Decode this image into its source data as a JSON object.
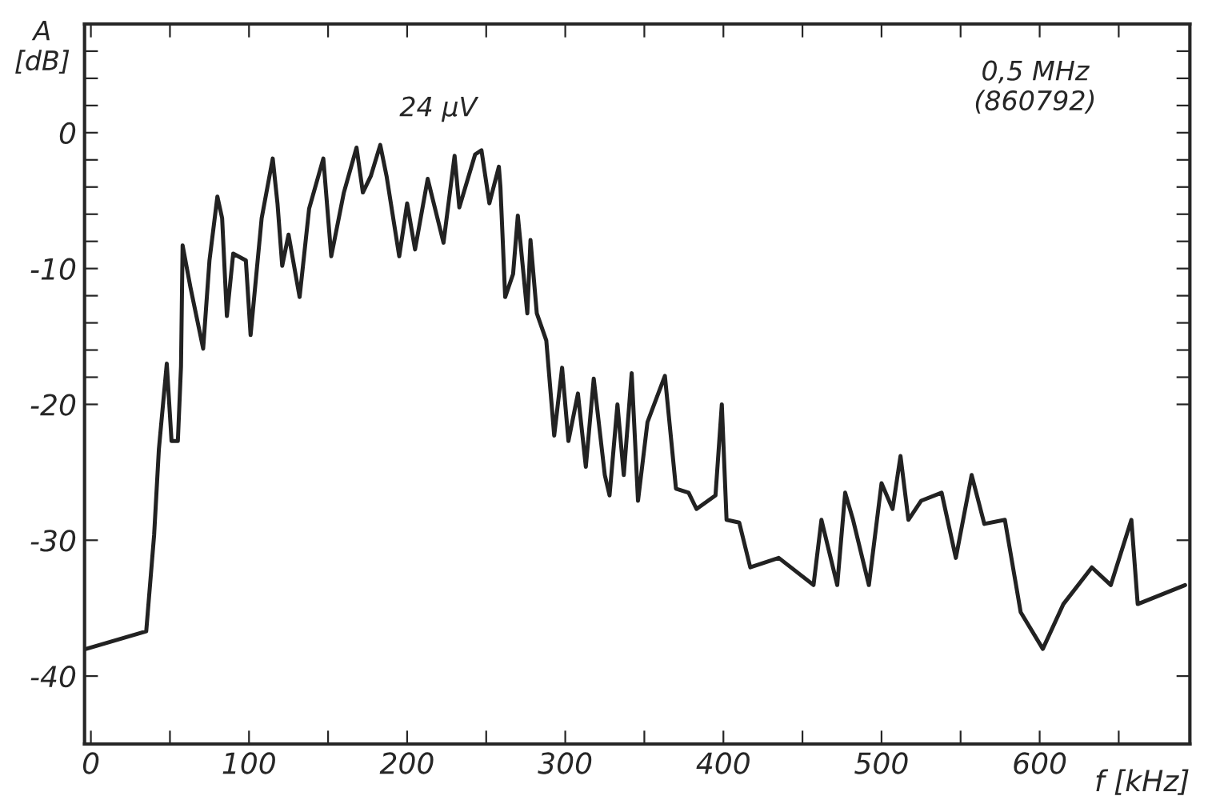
{
  "chart_data": {
    "type": "line",
    "xlabel": "f [kHz]",
    "ylabel": "A\n[dB]",
    "annotations": [
      "24 μV",
      "0,5 MHz\n(860792)"
    ],
    "xlim": [
      -4,
      695
    ],
    "ylim": [
      -45,
      8
    ],
    "xticks": [
      0,
      {
        "value": 50,
        "label": null
      },
      100,
      {
        "value": 150,
        "label": null
      },
      200,
      {
        "value": 250,
        "label": null
      },
      300,
      {
        "value": 350,
        "label": null
      },
      400,
      {
        "value": 450,
        "label": null
      },
      500,
      {
        "value": 550,
        "label": null
      },
      600,
      {
        "value": 650,
        "label": null
      }
    ],
    "yticks": [
      {
        "value": 6,
        "label": null
      },
      {
        "value": 4,
        "label": null
      },
      {
        "value": 2,
        "label": null
      },
      0,
      {
        "value": -2,
        "label": null
      },
      {
        "value": -4,
        "label": null
      },
      {
        "value": -6,
        "label": null
      },
      {
        "value": -8,
        "label": null
      },
      -10,
      {
        "value": -12,
        "label": null
      },
      {
        "value": -14,
        "label": null
      },
      {
        "value": -16,
        "label": null
      },
      {
        "value": -18,
        "label": null
      },
      -20,
      -30,
      -40
    ],
    "grid": false,
    "legend": false,
    "marker": "none",
    "line_style": "solid",
    "series": [
      {
        "color": "#222222",
        "x": [
          -3,
          35,
          40,
          43,
          48,
          51,
          55,
          57,
          58,
          63,
          71,
          75,
          80,
          83,
          86,
          90,
          98,
          101,
          108,
          115,
          118,
          121,
          125,
          132,
          138,
          147,
          152,
          160,
          168,
          172,
          177,
          183,
          187,
          195,
          200,
          205,
          213,
          223,
          230,
          233,
          243,
          247,
          252,
          258,
          259,
          262,
          267,
          270,
          276,
          278,
          282,
          288,
          293,
          298,
          302,
          308,
          313,
          318,
          325,
          328,
          333,
          337,
          342,
          346,
          352,
          363,
          370,
          378,
          383,
          395,
          399,
          402,
          410,
          417,
          435,
          457,
          462,
          472,
          477,
          482,
          492,
          500,
          507,
          512,
          517,
          525,
          538,
          547,
          557,
          565,
          578,
          588,
          602,
          615,
          633,
          645,
          658,
          662,
          692
        ],
        "values": [
          -38.0,
          -36.7,
          -29.6,
          -23.3,
          -17.0,
          -22.7,
          -22.7,
          -17.2,
          -8.3,
          -11.4,
          -15.9,
          -9.4,
          -4.7,
          -6.3,
          -13.5,
          -8.9,
          -9.4,
          -14.9,
          -6.3,
          -1.9,
          -5.2,
          -9.8,
          -7.5,
          -12.1,
          -5.6,
          -1.9,
          -9.1,
          -4.4,
          -1.1,
          -4.4,
          -3.2,
          -0.9,
          -3.2,
          -9.1,
          -5.2,
          -8.6,
          -3.4,
          -8.1,
          -1.7,
          -5.5,
          -1.6,
          -1.3,
          -5.2,
          -2.5,
          -4.0,
          -12.1,
          -10.4,
          -6.1,
          -13.3,
          -7.9,
          -13.3,
          -15.3,
          -22.3,
          -17.3,
          -22.7,
          -19.2,
          -24.6,
          -18.1,
          -25.2,
          -26.7,
          -20.0,
          -25.2,
          -17.7,
          -27.1,
          -21.3,
          -17.9,
          -26.2,
          -26.5,
          -27.7,
          -26.7,
          -20.0,
          -28.5,
          -28.7,
          -32.0,
          -31.3,
          -33.3,
          -28.5,
          -33.3,
          -26.5,
          -28.5,
          -33.3,
          -25.8,
          -27.7,
          -23.8,
          -28.5,
          -27.1,
          -26.5,
          -31.3,
          -25.2,
          -28.8,
          -28.5,
          -35.3,
          -38.0,
          -34.7,
          -32.0,
          -33.3,
          -28.5,
          -34.7,
          -33.3
        ]
      }
    ]
  }
}
